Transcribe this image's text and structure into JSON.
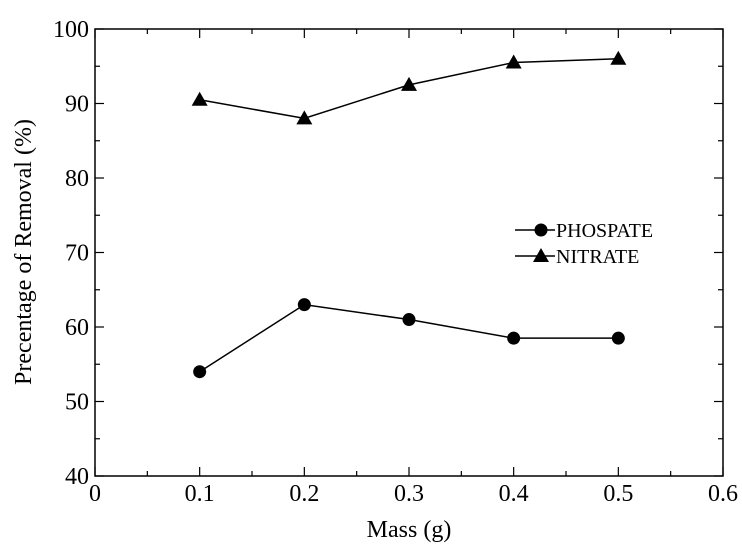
{
  "chart_data": {
    "type": "line",
    "xlabel": "Mass (g)",
    "ylabel": "Precentage of Removal (%)",
    "xlim": [
      0,
      0.6
    ],
    "ylim": [
      40,
      100
    ],
    "xticks": [
      "0",
      "0.1",
      "0.2",
      "0.3",
      "0.4",
      "0.5",
      "0.6"
    ],
    "yticks": [
      "40",
      "50",
      "60",
      "70",
      "80",
      "90",
      "100"
    ],
    "x": [
      0.1,
      0.2,
      0.3,
      0.4,
      0.5
    ],
    "series": [
      {
        "name": "PHOSPATE",
        "marker": "circle",
        "values": [
          54.0,
          63.0,
          61.0,
          58.5,
          58.5
        ]
      },
      {
        "name": "NITRATE",
        "marker": "triangle",
        "values": [
          90.5,
          88.0,
          92.5,
          95.5,
          96.0
        ]
      }
    ],
    "grid": false,
    "legend": "center-right",
    "colors": {
      "line": "#000000",
      "marker": "#000000"
    }
  }
}
